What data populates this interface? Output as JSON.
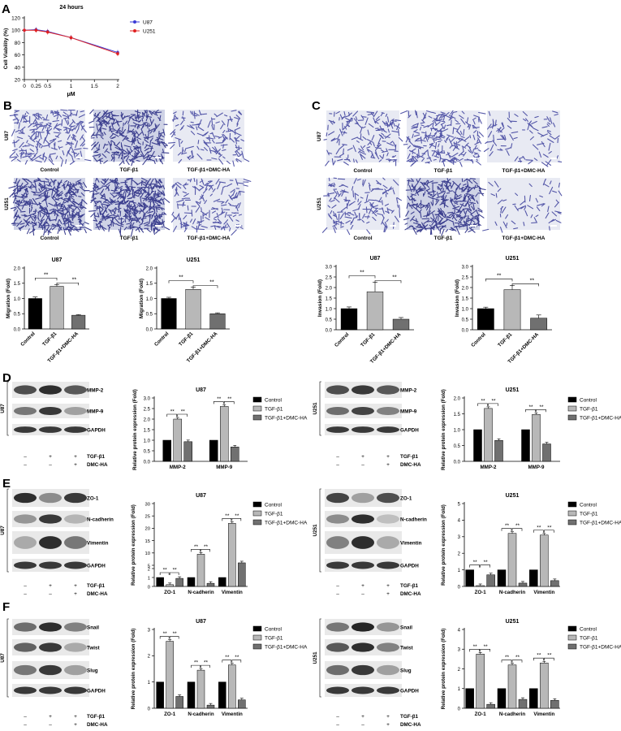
{
  "panels": {
    "A": "A",
    "B": "B",
    "C": "C",
    "D": "D",
    "E": "E",
    "F": "F"
  },
  "panelA": {
    "title": "24 hours",
    "ylabel": "Cell Viability (%)",
    "xlabel": "μM",
    "xticks": [
      "0",
      "0.25",
      "0.5",
      "1",
      "1.5",
      "2"
    ],
    "xtick_values": [
      0,
      0.25,
      0.5,
      1,
      1.5,
      2
    ],
    "yticks": [
      "20",
      "40",
      "60",
      "80",
      "100",
      "120"
    ],
    "ytick_values": [
      20,
      40,
      60,
      80,
      100,
      120
    ],
    "legend": [
      "U87",
      "U251"
    ],
    "colors": {
      "U87": "#3b3bd6",
      "U251": "#e02020"
    }
  },
  "chart_data": [
    {
      "id": "A",
      "type": "line",
      "title": "24 hours",
      "xlabel": "μM",
      "ylabel": "Cell Viability (%)",
      "xlim": [
        0,
        2
      ],
      "ylim": [
        20,
        120
      ],
      "x": [
        0,
        0.25,
        0.5,
        1,
        2
      ],
      "series": [
        {
          "name": "U87",
          "values": [
            100,
            101,
            98,
            88,
            64
          ]
        },
        {
          "name": "U251",
          "values": [
            100,
            100,
            97,
            88,
            62
          ]
        }
      ]
    },
    {
      "id": "B-U87",
      "type": "bar",
      "title": "U87",
      "ylabel": "Migration (Fold)",
      "categories": [
        "Control",
        "TGF-β1",
        "TGF-β1+DMC-HA"
      ],
      "values": [
        1.0,
        1.4,
        0.45
      ],
      "errors": [
        0.05,
        0.06,
        0.02
      ],
      "ylim": [
        0,
        2.0
      ],
      "yticks": [
        "0.0",
        "0.5",
        "1.0",
        "1.5",
        "2.0"
      ],
      "sig": [
        "**",
        "**"
      ]
    },
    {
      "id": "B-U251",
      "type": "bar",
      "title": "U251",
      "ylabel": "Migration (Fold)",
      "categories": [
        "Control",
        "TGF-β1",
        "TGF-β1+DMC-HA"
      ],
      "values": [
        1.0,
        1.3,
        0.5
      ],
      "errors": [
        0.04,
        0.07,
        0.03
      ],
      "ylim": [
        0,
        2.0
      ],
      "yticks": [
        "0.0",
        "0.5",
        "1.0",
        "1.5",
        "2.0"
      ],
      "sig": [
        "**",
        "**"
      ]
    },
    {
      "id": "C-U87",
      "type": "bar",
      "title": "U87",
      "ylabel": "Invasion (Fold)",
      "categories": [
        "Control",
        "TGF-β1",
        "TGF-β1+DMC-HA"
      ],
      "values": [
        1.0,
        1.8,
        0.5
      ],
      "errors": [
        0.08,
        0.45,
        0.08
      ],
      "ylim": [
        0,
        3.0
      ],
      "yticks": [
        "0.0",
        "0.5",
        "1.0",
        "1.5",
        "2.0",
        "2.5",
        "3.0"
      ],
      "sig": [
        "**",
        "**"
      ]
    },
    {
      "id": "C-U251",
      "type": "bar",
      "title": "U251",
      "ylabel": "Invasion (Fold)",
      "categories": [
        "Control",
        "TGF-β1",
        "TGF-β1+DMC-HA"
      ],
      "values": [
        1.0,
        1.9,
        0.55
      ],
      "errors": [
        0.07,
        0.2,
        0.15
      ],
      "ylim": [
        0,
        3.0
      ],
      "yticks": [
        "0.0",
        "0.5",
        "1.0",
        "1.5",
        "2.0",
        "2.5",
        "3.0"
      ],
      "sig": [
        "**",
        "**"
      ]
    },
    {
      "id": "D-U87",
      "type": "bar",
      "title": "U87",
      "ylabel": "Relative protein expression (Fold)",
      "categories": [
        "MMP-2",
        "MMP-9"
      ],
      "ylim": [
        0,
        3.0
      ],
      "yticks": [
        "0.0",
        "0.5",
        "1.0",
        "1.5",
        "2.0",
        "2.5",
        "3.0"
      ],
      "series": [
        {
          "name": "Control",
          "values": [
            1.0,
            1.0
          ]
        },
        {
          "name": "TGF-β1",
          "values": [
            2.0,
            2.6
          ]
        },
        {
          "name": "TGF-β1+DMC-HA",
          "values": [
            0.93,
            0.68
          ]
        }
      ],
      "errors": [
        [
          0,
          0
        ],
        [
          0.1,
          0.1
        ],
        [
          0.05,
          0.03
        ]
      ]
    },
    {
      "id": "D-U251",
      "type": "bar",
      "title": "U251",
      "ylabel": "Relative protein expression (Fold)",
      "categories": [
        "MMP-2",
        "MMP-9"
      ],
      "ylim": [
        0,
        2.0
      ],
      "yticks": [
        "0.0",
        "0.5",
        "1.0",
        "1.5",
        "2.0"
      ],
      "series": [
        {
          "name": "Control",
          "values": [
            1.0,
            1.0
          ]
        },
        {
          "name": "TGF-β1",
          "values": [
            1.67,
            1.48
          ]
        },
        {
          "name": "TGF-β1+DMC-HA",
          "values": [
            0.66,
            0.55
          ]
        }
      ],
      "errors": [
        [
          0,
          0
        ],
        [
          0.05,
          0.08
        ],
        [
          0.05,
          0.06
        ]
      ]
    },
    {
      "id": "E-U87",
      "type": "bar",
      "title": "U87",
      "ylabel": "Relative protein expression (Fold)",
      "categories": [
        "ZO-1",
        "N-cadherin",
        "Vimentin"
      ],
      "axis": "broken",
      "yticks": [
        "0",
        "1",
        "2",
        "5",
        "10",
        "15",
        "20",
        "25",
        "30"
      ],
      "series": [
        {
          "name": "Control",
          "values": [
            1.0,
            1.0,
            1.0
          ]
        },
        {
          "name": "TGF-β1",
          "values": [
            0.2,
            9.5,
            22
          ]
        },
        {
          "name": "TGF-β1+DMC-HA",
          "values": [
            0.9,
            0.35,
            6.0
          ]
        }
      ]
    },
    {
      "id": "E-U251",
      "type": "bar",
      "title": "U251",
      "ylabel": "Relative protein expression (Fold)",
      "categories": [
        "ZO-1",
        "N-cadherin",
        "Vimentin"
      ],
      "ylim": [
        0,
        5
      ],
      "yticks": [
        "0",
        "1",
        "2",
        "3",
        "4",
        "5"
      ],
      "series": [
        {
          "name": "Control",
          "values": [
            1.0,
            1.0,
            1.0
          ]
        },
        {
          "name": "TGF-β1",
          "values": [
            0.05,
            3.2,
            3.1
          ]
        },
        {
          "name": "TGF-β1+DMC-HA",
          "values": [
            0.7,
            0.2,
            0.35
          ]
        }
      ]
    },
    {
      "id": "F-U87",
      "type": "bar",
      "title": "U87",
      "ylabel": "Relative protein expression (Fold)",
      "categories": [
        "ZO-1",
        "N-cadherin",
        "Vimentin"
      ],
      "ylim": [
        0,
        3
      ],
      "yticks": [
        "0",
        "1",
        "2",
        "3"
      ],
      "series": [
        {
          "name": "Control",
          "values": [
            1.0,
            1.0,
            1.0
          ]
        },
        {
          "name": "TGF-β1",
          "values": [
            2.55,
            1.45,
            1.65
          ]
        },
        {
          "name": "TGF-β1+DMC-HA",
          "values": [
            0.45,
            0.12,
            0.32
          ]
        }
      ]
    },
    {
      "id": "F-U251",
      "type": "bar",
      "title": "U251",
      "ylabel": "Relative protein expression (Fold)",
      "categories": [
        "ZO-1",
        "N-cadherin",
        "Vimentin"
      ],
      "ylim": [
        0,
        4
      ],
      "yticks": [
        "0",
        "1",
        "2",
        "3",
        "4"
      ],
      "series": [
        {
          "name": "Control",
          "values": [
            1.0,
            1.0,
            1.0
          ]
        },
        {
          "name": "TGF-β1",
          "values": [
            2.75,
            2.2,
            2.3
          ]
        },
        {
          "name": "TGF-β1+DMC-HA",
          "values": [
            0.2,
            0.45,
            0.4
          ]
        }
      ]
    }
  ],
  "bar_legend": [
    "Control",
    "TGF-β1",
    "TGF-β1+DMC-HA"
  ],
  "bar_colors": {
    "Control": "#000000",
    "TGF-β1": "#b8b8b8",
    "TGF-β1+DMC-HA": "#707070"
  },
  "image_labels": {
    "rows": [
      "U87",
      "U251"
    ],
    "conditions": [
      "Control",
      "TGF-β1",
      "TGF-β1+DMC-HA"
    ]
  },
  "western": {
    "D_bands": [
      "MMP-2",
      "MMP-9",
      "GAPDH"
    ],
    "E_bands": [
      "ZO-1",
      "N-cadherin",
      "Vimentin",
      "GAPDH"
    ],
    "F_bands": [
      "Snail",
      "Twist",
      "Slug",
      "GAPDH"
    ],
    "row_labels": [
      "TGF-β1",
      "DMC-HA"
    ],
    "tgf": [
      "–",
      "+",
      "+"
    ],
    "dmc": [
      "–",
      "–",
      "+"
    ]
  }
}
